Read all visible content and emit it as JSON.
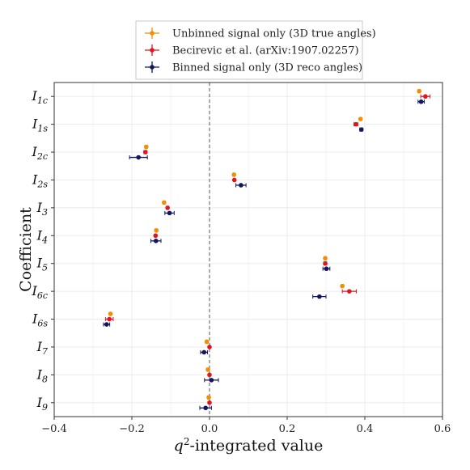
{
  "chart_data": {
    "type": "scatter",
    "subtype": "horizontal-errorbar-dot",
    "xlabel": "q²-integrated value",
    "ylabel": "Coefficient",
    "xlim": [
      -0.4,
      0.6
    ],
    "xticks": [
      -0.4,
      -0.2,
      0.0,
      0.2,
      0.4,
      0.6
    ],
    "xtick_labels": [
      "−0.4",
      "−0.2",
      "0.0",
      "0.2",
      "0.4",
      "0.6"
    ],
    "grid": true,
    "reference_line_x": 0.0,
    "legend_position": "top",
    "categories": [
      {
        "base": "I",
        "sub": "1c"
      },
      {
        "base": "I",
        "sub": "1s"
      },
      {
        "base": "I",
        "sub": "2c"
      },
      {
        "base": "I",
        "sub": "2s"
      },
      {
        "base": "I",
        "sub": "3"
      },
      {
        "base": "I",
        "sub": "4"
      },
      {
        "base": "I",
        "sub": "5"
      },
      {
        "base": "I",
        "sub": "6c"
      },
      {
        "base": "I",
        "sub": "6s"
      },
      {
        "base": "I",
        "sub": "7"
      },
      {
        "base": "I",
        "sub": "8"
      },
      {
        "base": "I",
        "sub": "9"
      }
    ],
    "series": [
      {
        "name": "Unbinned signal only (3D true angles)",
        "color": "#f28e00",
        "values": [
          0.54,
          0.389,
          -0.163,
          0.063,
          -0.117,
          -0.137,
          0.298,
          0.342,
          -0.255,
          -0.007,
          -0.004,
          -0.002
        ],
        "errors": [
          0.003,
          0.003,
          0.003,
          0.003,
          0.003,
          0.003,
          0.003,
          0.003,
          0.003,
          0.003,
          0.003,
          0.003
        ]
      },
      {
        "name": "Becirevic et al. (arXiv:1907.02257)",
        "color": "#e0161e",
        "values": [
          0.556,
          0.377,
          -0.165,
          0.064,
          -0.108,
          -0.139,
          0.298,
          0.36,
          -0.258,
          0.0,
          0.0,
          0.0
        ],
        "errors": [
          0.012,
          0.005,
          0.004,
          0.002,
          0.003,
          0.002,
          0.004,
          0.018,
          0.01,
          0.001,
          0.001,
          0.001
        ]
      },
      {
        "name": "Binned signal only (3D reco angles)",
        "color": "#14145f",
        "values": [
          0.545,
          0.391,
          -0.183,
          0.081,
          -0.103,
          -0.138,
          0.301,
          0.283,
          -0.265,
          -0.014,
          0.005,
          -0.01
        ],
        "errors": [
          0.008,
          0.004,
          0.023,
          0.013,
          0.012,
          0.013,
          0.009,
          0.017,
          0.008,
          0.009,
          0.018,
          0.015
        ]
      }
    ]
  }
}
